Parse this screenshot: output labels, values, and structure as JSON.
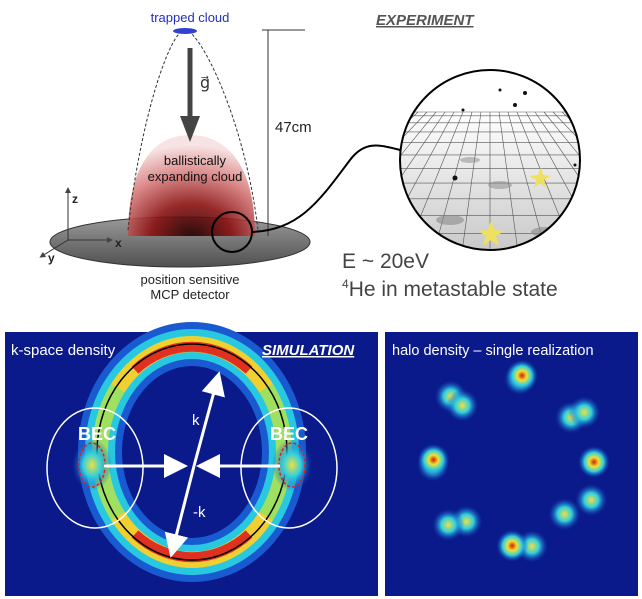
{
  "experiment": {
    "trapped_cloud": "trapped cloud",
    "gravity": "g⃗",
    "height": "47cm",
    "cloud_line1": "ballistically",
    "cloud_line2": "expanding cloud",
    "axis_z": "z",
    "axis_x": "x",
    "axis_y": "y",
    "detector_line1": "position sensitive",
    "detector_line2": "MCP detector",
    "title": "EXPERIMENT",
    "energy": "E ~ 20eV",
    "isotope_mass": "4",
    "state": "He in metastable state"
  },
  "simulation": {
    "label": "k-space density",
    "title": "SIMULATION",
    "bec_left": "BEC",
    "bec_right": "BEC",
    "k": "k",
    "minus_k": "-k"
  },
  "halo": {
    "label": "halo density – single realization"
  }
}
